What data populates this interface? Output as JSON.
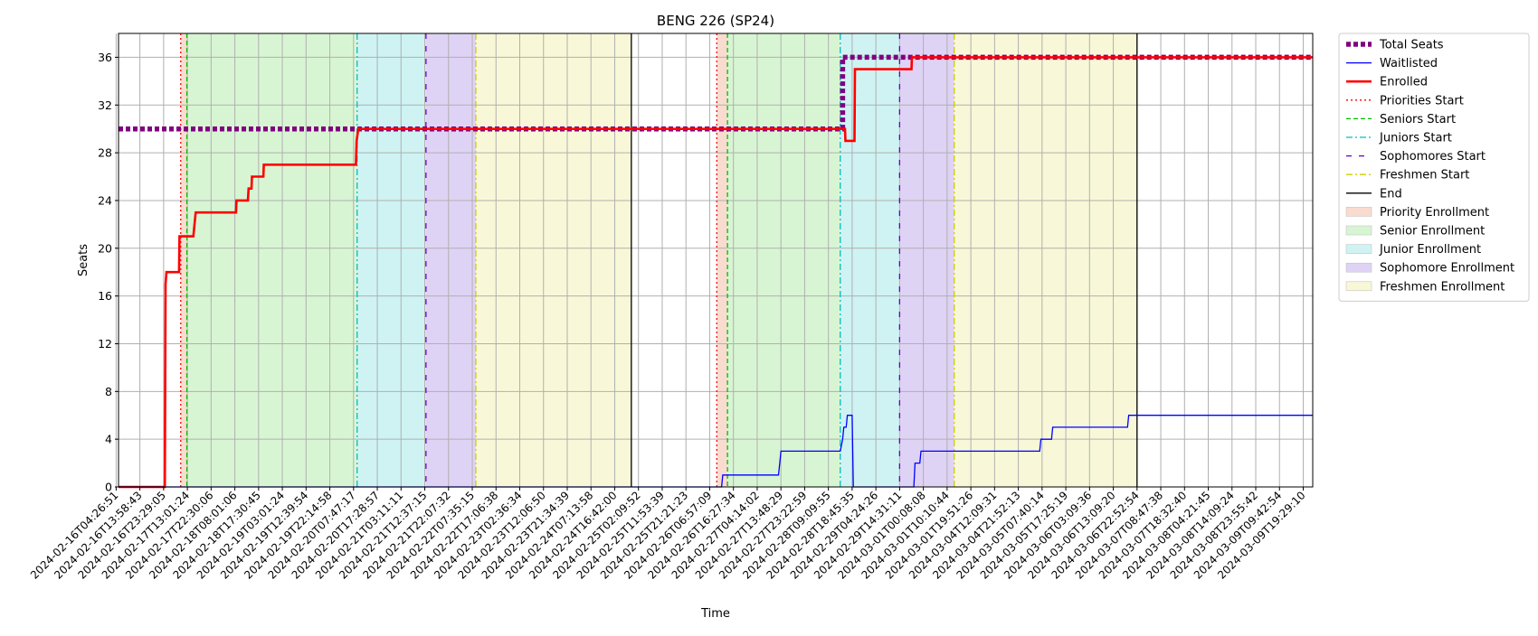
{
  "chart_data": {
    "type": "line",
    "title": "BENG 226 (SP24)",
    "xlabel": "Time",
    "ylabel": "Seats",
    "ylim": [
      0,
      38
    ],
    "xlim": [
      "2024-02-16T04:26:51",
      "2024-03-09T19:29:10"
    ],
    "yticks": [
      0,
      4,
      8,
      12,
      16,
      20,
      24,
      28,
      32,
      36
    ],
    "xticks": [
      "2024-02-16T04:26:51",
      "2024-02-16T13:58:43",
      "2024-02-16T23:29:05",
      "2024-02-17T13:01:24",
      "2024-02-17T22:30:06",
      "2024-02-18T08:01:06",
      "2024-02-18T17:30:45",
      "2024-02-19T03:01:24",
      "2024-02-19T12:39:54",
      "2024-02-19T22:14:58",
      "2024-02-20T07:47:17",
      "2024-02-20T17:28:57",
      "2024-02-21T03:11:11",
      "2024-02-21T12:37:15",
      "2024-02-21T22:07:32",
      "2024-02-22T07:35:15",
      "2024-02-22T17:06:38",
      "2024-02-23T02:36:34",
      "2024-02-23T12:06:50",
      "2024-02-23T21:34:39",
      "2024-02-24T07:13:58",
      "2024-02-24T16:42:00",
      "2024-02-25T02:09:52",
      "2024-02-25T11:53:39",
      "2024-02-25T21:21:23",
      "2024-02-26T06:57:09",
      "2024-02-26T16:27:34",
      "2024-02-27T04:14:02",
      "2024-02-27T13:48:29",
      "2024-02-27T23:22:59",
      "2024-02-28T09:09:55",
      "2024-02-28T18:45:35",
      "2024-02-29T04:24:26",
      "2024-02-29T14:31:11",
      "2024-03-01T00:08:08",
      "2024-03-01T10:10:44",
      "2024-03-01T19:51:26",
      "2024-03-04T12:09:31",
      "2024-03-04T21:52:13",
      "2024-03-05T07:40:14",
      "2024-03-05T17:25:19",
      "2024-03-06T03:09:36",
      "2024-03-06T13:09:20",
      "2024-03-06T22:52:54",
      "2024-03-07T08:47:38",
      "2024-03-07T18:32:40",
      "2024-03-08T04:21:45",
      "2024-03-08T14:09:24",
      "2024-03-08T23:55:42",
      "2024-03-09T09:42:54",
      "2024-03-09T19:29:10"
    ],
    "grid": true,
    "legend_position": "outside-right-top",
    "legend": [
      {
        "label": "Total Seats",
        "kind": "line",
        "color": "#800080",
        "dash": "dashed",
        "width": "thick"
      },
      {
        "label": "Waitlisted",
        "kind": "line",
        "color": "#0000ff",
        "dash": "solid",
        "width": "thin"
      },
      {
        "label": "Enrolled",
        "kind": "line",
        "color": "#ff0000",
        "dash": "solid",
        "width": "medium"
      },
      {
        "label": "Priorities Start",
        "kind": "line",
        "color": "#ff0000",
        "dash": "dotted",
        "width": "thin"
      },
      {
        "label": "Seniors Start",
        "kind": "line",
        "color": "#00bb00",
        "dash": "dashed",
        "width": "thin"
      },
      {
        "label": "Juniors Start",
        "kind": "line",
        "color": "#00bfbf",
        "dash": "dashdot",
        "width": "thin"
      },
      {
        "label": "Sophomores Start",
        "kind": "line",
        "color": "#6600cc",
        "dash": "loosedash",
        "width": "thin"
      },
      {
        "label": "Freshmen Start",
        "kind": "line",
        "color": "#cccc00",
        "dash": "dashdot",
        "width": "thin"
      },
      {
        "label": "End",
        "kind": "line",
        "color": "#000000",
        "dash": "solid",
        "width": "thin"
      },
      {
        "label": "Priority Enrollment",
        "kind": "patch",
        "color": "#f9dccf"
      },
      {
        "label": "Senior Enrollment",
        "kind": "patch",
        "color": "#d8f5d3"
      },
      {
        "label": "Junior Enrollment",
        "kind": "patch",
        "color": "#cff3f3"
      },
      {
        "label": "Sophomore Enrollment",
        "kind": "patch",
        "color": "#dfd3f5"
      },
      {
        "label": "Freshmen Enrollment",
        "kind": "patch",
        "color": "#f8f8d8"
      }
    ],
    "periods": [
      {
        "name": "Priority Enrollment",
        "color": "#f9dccf",
        "start": 2.72,
        "end": 2.98
      },
      {
        "name": "Senior Enrollment",
        "color": "#d8f5d3",
        "start": 2.98,
        "end": 10.15
      },
      {
        "name": "Junior Enrollment",
        "color": "#cff3f3",
        "start": 10.15,
        "end": 13.05
      },
      {
        "name": "Sophomore Enrollment",
        "color": "#dfd3f5",
        "start": 13.05,
        "end": 15.15
      },
      {
        "name": "Freshmen Enrollment",
        "color": "#f8f8d8",
        "start": 15.15,
        "end": 21.7
      },
      {
        "name": "Priority Enrollment",
        "color": "#f9dccf",
        "start": 25.3,
        "end": 25.75
      },
      {
        "name": "Senior Enrollment",
        "color": "#d8f5d3",
        "start": 25.75,
        "end": 30.5
      },
      {
        "name": "Junior Enrollment",
        "color": "#cff3f3",
        "start": 30.5,
        "end": 33.0
      },
      {
        "name": "Sophomore Enrollment",
        "color": "#dfd3f5",
        "start": 33.0,
        "end": 35.3
      },
      {
        "name": "Freshmen Enrollment",
        "color": "#f8f8d8",
        "start": 35.3,
        "end": 43.0
      }
    ],
    "vlines": [
      {
        "name": "Priorities Start",
        "x": 2.72
      },
      {
        "name": "Seniors Start",
        "x": 2.98
      },
      {
        "name": "Juniors Start",
        "x": 10.15
      },
      {
        "name": "Sophomores Start",
        "x": 13.05
      },
      {
        "name": "Freshmen Start",
        "x": 15.15
      },
      {
        "name": "End",
        "x": 21.7
      },
      {
        "name": "Priorities Start",
        "x": 25.3
      },
      {
        "name": "Seniors Start",
        "x": 25.75
      },
      {
        "name": "Juniors Start",
        "x": 30.5
      },
      {
        "name": "Sophomores Start",
        "x": 33.0
      },
      {
        "name": "Freshmen Start",
        "x": 35.3
      },
      {
        "name": "End",
        "x": 43.0
      }
    ],
    "series": [
      {
        "name": "Total Seats",
        "points": [
          [
            0,
            30
          ],
          [
            30.6,
            30
          ],
          [
            30.6,
            36
          ],
          [
            50.4,
            36
          ]
        ]
      },
      {
        "name": "Enrolled",
        "points": [
          [
            0,
            0
          ],
          [
            2.05,
            0
          ],
          [
            2.08,
            17
          ],
          [
            2.12,
            18
          ],
          [
            2.65,
            18
          ],
          [
            2.67,
            21
          ],
          [
            3.25,
            21
          ],
          [
            3.3,
            22
          ],
          [
            3.35,
            23
          ],
          [
            5.05,
            23
          ],
          [
            5.07,
            24
          ],
          [
            5.55,
            24
          ],
          [
            5.58,
            25
          ],
          [
            5.7,
            25
          ],
          [
            5.72,
            26
          ],
          [
            6.2,
            26
          ],
          [
            6.22,
            27
          ],
          [
            10.1,
            27
          ],
          [
            10.13,
            29
          ],
          [
            10.2,
            30
          ],
          [
            30.7,
            30
          ],
          [
            30.72,
            29
          ],
          [
            31.1,
            29
          ],
          [
            31.12,
            35
          ],
          [
            33.0,
            35
          ],
          [
            33.5,
            35
          ],
          [
            33.52,
            36
          ],
          [
            50.4,
            36
          ]
        ]
      },
      {
        "name": "Waitlisted",
        "points": [
          [
            0,
            0
          ],
          [
            25.5,
            0
          ],
          [
            25.55,
            1
          ],
          [
            27.9,
            1
          ],
          [
            27.95,
            2
          ],
          [
            28.0,
            3
          ],
          [
            30.5,
            3
          ],
          [
            30.6,
            4
          ],
          [
            30.65,
            5
          ],
          [
            30.75,
            5
          ],
          [
            30.8,
            6
          ],
          [
            31.0,
            6
          ],
          [
            31.05,
            0
          ],
          [
            33.0,
            0
          ],
          [
            33.6,
            0
          ],
          [
            33.65,
            2
          ],
          [
            33.85,
            2
          ],
          [
            33.9,
            3
          ],
          [
            38.9,
            3
          ],
          [
            38.95,
            4
          ],
          [
            39.4,
            4
          ],
          [
            39.45,
            5
          ],
          [
            42.6,
            5
          ],
          [
            42.65,
            6
          ],
          [
            50.4,
            6
          ]
        ]
      }
    ]
  }
}
